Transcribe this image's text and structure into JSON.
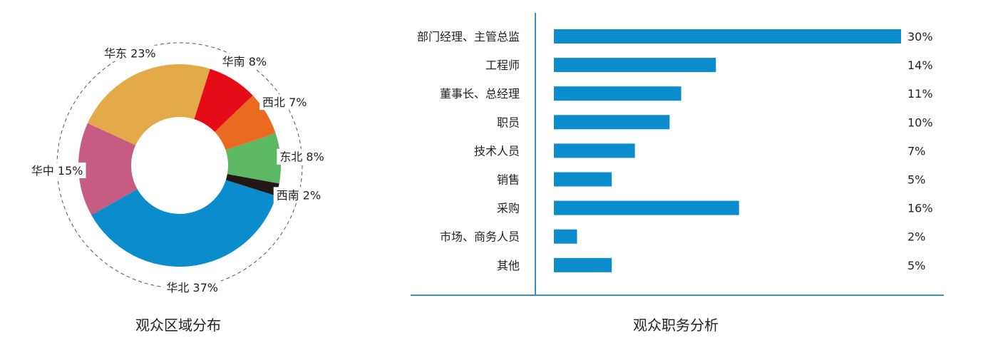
{
  "chart_data": [
    {
      "type": "pie",
      "variant": "donut",
      "title": "观众区域分布",
      "slices": [
        {
          "label": "华北",
          "value": 37,
          "display": "华北 37%",
          "color": "#0a8ccd"
        },
        {
          "label": "华中",
          "value": 15,
          "display": "华中 15%",
          "color": "#c75c82"
        },
        {
          "label": "华东",
          "value": 23,
          "display": "华东 23%",
          "color": "#e4aa4a"
        },
        {
          "label": "华南",
          "value": 8,
          "display": "华南 8%",
          "color": "#e60c17"
        },
        {
          "label": "西北",
          "value": 7,
          "display": "西北 7%",
          "color": "#ea6a1f"
        },
        {
          "label": "东北",
          "value": 8,
          "display": "东北 8%",
          "color": "#5cb862"
        },
        {
          "label": "西南",
          "value": 2,
          "display": "西南 2%",
          "color": "#231815"
        }
      ]
    },
    {
      "type": "bar",
      "orientation": "horizontal",
      "title": "观众职务分析",
      "categories": [
        "部门经理、主管总监",
        "工程师",
        "董事长、总经理",
        "职员",
        "技术人员",
        "销售",
        "采购",
        "市场、商务人员",
        "其他"
      ],
      "values": [
        30,
        14,
        11,
        10,
        7,
        5,
        16,
        2,
        5
      ],
      "value_labels": [
        "30%",
        "14%",
        "11%",
        "10%",
        "7%",
        "5%",
        "16%",
        "2%",
        "5%"
      ],
      "bar_color": "#0a8ccd",
      "axis_color": "#3a8fc6",
      "xlim": [
        0,
        30
      ]
    }
  ]
}
